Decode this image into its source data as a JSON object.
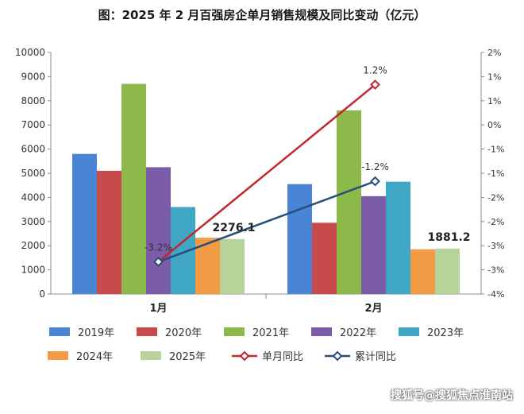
{
  "chart_data": {
    "type": "bar",
    "title": "图：2025 年 2 月百强房企单月销售规模及同比变动（亿元）",
    "categories": [
      "1月",
      "2月"
    ],
    "series": [
      {
        "name": "2019年",
        "type": "bar",
        "axis": "left",
        "color": "#4a84d4",
        "values": [
          5800,
          4550
        ]
      },
      {
        "name": "2020年",
        "type": "bar",
        "axis": "left",
        "color": "#c84b4b",
        "values": [
          5100,
          2950
        ]
      },
      {
        "name": "2021年",
        "type": "bar",
        "axis": "left",
        "color": "#8db84a",
        "values": [
          8700,
          7600
        ]
      },
      {
        "name": "2022年",
        "type": "bar",
        "axis": "left",
        "color": "#7b5ca8",
        "values": [
          5250,
          4050
        ]
      },
      {
        "name": "2023年",
        "type": "bar",
        "axis": "left",
        "color": "#3fa6c4",
        "values": [
          3600,
          4650
        ]
      },
      {
        "name": "2024年",
        "type": "bar",
        "axis": "left",
        "color": "#f39a45",
        "values": [
          2330,
          1850
        ]
      },
      {
        "name": "2025年",
        "type": "bar",
        "axis": "left",
        "color": "#b7d39a",
        "values": [
          2276.1,
          1881.2
        ]
      },
      {
        "name": "单月同比",
        "type": "line",
        "axis": "right",
        "color": "#c0272d",
        "values": [
          -3.2,
          1.2
        ]
      },
      {
        "name": "累计同比",
        "type": "line",
        "axis": "right",
        "color": "#264f7a",
        "values": [
          -3.2,
          -1.2
        ]
      }
    ],
    "y_left": {
      "min": 0,
      "max": 10000,
      "ticks": [
        "0",
        "1000",
        "2000",
        "3000",
        "4000",
        "5000",
        "6000",
        "7000",
        "8000",
        "9000",
        "10000"
      ]
    },
    "y_right": {
      "min": -4,
      "max": 2,
      "ticks": [
        "-4%",
        "-3%",
        "-3%",
        "-2%",
        "-2%",
        "-1%",
        "-1%",
        "0%",
        "1%",
        "1%",
        "2%"
      ]
    },
    "data_labels": [
      {
        "text": "2276.1",
        "series": "2025年",
        "index": 0
      },
      {
        "text": "1881.2",
        "series": "2025年",
        "index": 1
      },
      {
        "text": "-3.2%",
        "series": "单月同比",
        "index": 0
      },
      {
        "text": "1.2%",
        "series": "单月同比",
        "index": 1
      },
      {
        "text": "-1.2%",
        "series": "累计同比",
        "index": 1
      }
    ],
    "legend_position": "bottom",
    "grid": false
  },
  "watermark": "搜狐号@搜狐焦点淮南站"
}
